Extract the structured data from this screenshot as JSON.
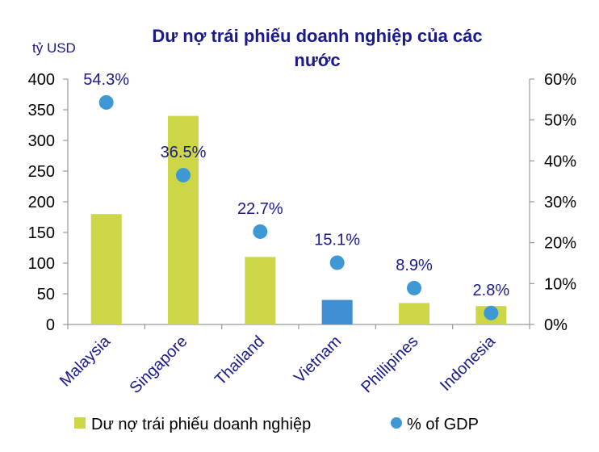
{
  "chart_data": {
    "type": "bar",
    "title_lines": [
      "Dư nợ trái phiếu doanh nghiệp của các",
      "nước"
    ],
    "ylabel": "tỷ USD",
    "categories": [
      "Malaysia",
      "Singapore",
      "Thailand",
      "Vietnam",
      "Phillipines",
      "Indonesia"
    ],
    "y_ticks": [
      "0",
      "50",
      "100",
      "150",
      "200",
      "250",
      "300",
      "350",
      "400"
    ],
    "y_right_ticks": [
      "0%",
      "10%",
      "20%",
      "30%",
      "40%",
      "50%",
      "60%"
    ],
    "ylim": [
      0,
      400
    ],
    "y_right_lim": [
      0,
      60
    ],
    "series": [
      {
        "name": "Dư nợ trái phiếu doanh nghiệp",
        "kind": "bar",
        "axis": "left",
        "values": [
          180,
          340,
          110,
          40,
          35,
          30
        ]
      },
      {
        "name": "% of GDP",
        "kind": "scatter",
        "axis": "right",
        "values": [
          54.3,
          36.5,
          22.7,
          15.1,
          8.9,
          2.8
        ],
        "labels": [
          "54.3%",
          "36.5%",
          "22.7%",
          "15.1%",
          "8.9%",
          "2.8%"
        ]
      }
    ],
    "highlight_category": "Vietnam",
    "colors": {
      "bar": "#cdd647",
      "bar_highlight": "#3f8fd2",
      "dot": "#3f98d6",
      "title": "#1a1a8c",
      "labels": "#1a1a8c",
      "axis": "#9a9a9a"
    },
    "legend_position": "bottom",
    "grid": false
  }
}
